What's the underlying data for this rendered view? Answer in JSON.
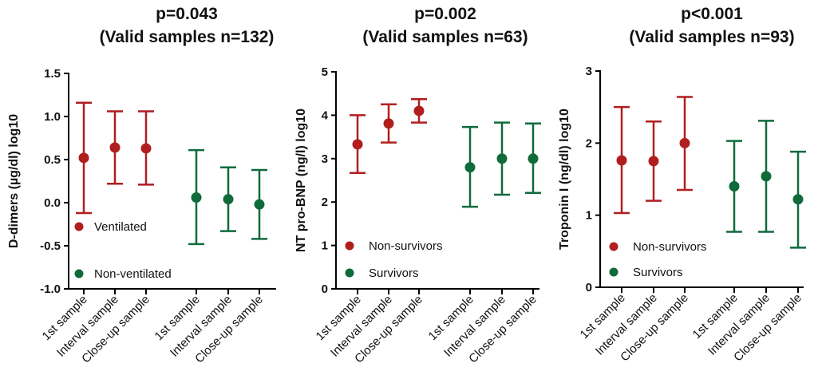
{
  "chart_data": [
    {
      "type": "scatter",
      "title_line1": "p=0.043",
      "title_line2": "(Valid samples n=132)",
      "ylabel": "D-dimers (µg/dl) log10",
      "ylim": [
        -1.0,
        1.5
      ],
      "yticks": [
        -1.0,
        -0.5,
        0.0,
        0.5,
        1.0,
        1.5
      ],
      "ytick_labels": [
        "-1.0",
        "-0.5",
        "0.0",
        "0.5",
        "1.0",
        "1.5"
      ],
      "categories": [
        "1st sample",
        "Interval sample",
        "Close-up sample",
        "1st sample",
        "Interval sample",
        "Close-up sample"
      ],
      "series": [
        {
          "name": "Ventilated",
          "color": "#b01e1e",
          "mean": [
            0.52,
            0.64,
            0.63
          ],
          "lower": [
            -0.12,
            0.22,
            0.21
          ],
          "upper": [
            1.16,
            1.06,
            1.06
          ]
        },
        {
          "name": "Non-ventilated",
          "color": "#0f6b3a",
          "mean": [
            0.06,
            0.04,
            -0.02
          ],
          "lower": [
            -0.48,
            -0.33,
            -0.42
          ],
          "upper": [
            0.61,
            0.41,
            0.38
          ]
        }
      ]
    },
    {
      "type": "scatter",
      "title_line1": "p=0.002",
      "title_line2": "(Valid samples n=63)",
      "ylabel": "NT pro-BNP (ng/l) log10",
      "ylim": [
        0,
        5
      ],
      "yticks": [
        0,
        1,
        2,
        3,
        4,
        5
      ],
      "ytick_labels": [
        "0",
        "1",
        "2",
        "3",
        "4",
        "5"
      ],
      "categories": [
        "1st sample",
        "Interval sample",
        "Close-up sample",
        "1st sample",
        "Interval sample",
        "Close-up sample"
      ],
      "series": [
        {
          "name": "Non-survivors",
          "color": "#b01e1e",
          "mean": [
            3.33,
            3.81,
            4.1
          ],
          "lower": [
            2.67,
            3.37,
            3.83
          ],
          "upper": [
            4.0,
            4.25,
            4.37
          ]
        },
        {
          "name": "Survivors",
          "color": "#0f6b3a",
          "mean": [
            2.8,
            3.0,
            3.0
          ],
          "lower": [
            1.89,
            2.17,
            2.21
          ],
          "upper": [
            3.73,
            3.83,
            3.81
          ]
        }
      ]
    },
    {
      "type": "scatter",
      "title_line1": "p<0.001",
      "title_line2": "(Valid samples n=93)",
      "ylabel": "Troponin I (ng/dl) log10",
      "ylim": [
        0,
        3
      ],
      "yticks": [
        0,
        1,
        2,
        3
      ],
      "ytick_labels": [
        "0",
        "1",
        "2",
        "3"
      ],
      "categories": [
        "1st sample",
        "Interval sample",
        "Close-up sample",
        "1st sample",
        "Interval sample",
        "Close-up sample"
      ],
      "series": [
        {
          "name": "Non-survivors",
          "color": "#b01e1e",
          "mean": [
            1.76,
            1.75,
            2.0
          ],
          "lower": [
            1.03,
            1.2,
            1.35
          ],
          "upper": [
            2.5,
            2.3,
            2.64
          ]
        },
        {
          "name": "Survivors",
          "color": "#0f6b3a",
          "mean": [
            1.4,
            1.54,
            1.22
          ],
          "lower": [
            0.77,
            0.77,
            0.55
          ],
          "upper": [
            2.03,
            2.31,
            1.88
          ]
        }
      ]
    }
  ]
}
